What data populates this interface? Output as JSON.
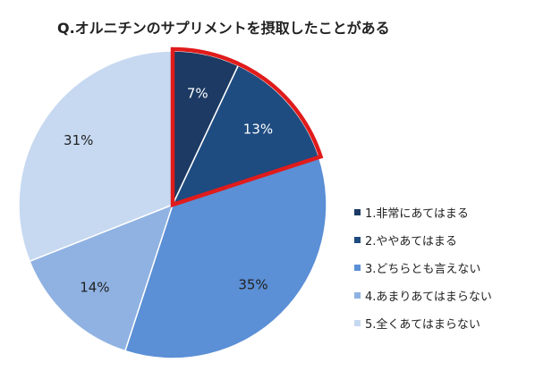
{
  "chart_data": {
    "type": "pie",
    "title": "Q.オルニチンのサプリメントを摂取したことがある",
    "slices": [
      {
        "label": "1.非常にあてはまる",
        "value": 7,
        "display": "7%",
        "color": "#1c3a63",
        "text_color": "#ffffff",
        "highlighted": true
      },
      {
        "label": "2.ややあてはまる",
        "value": 13,
        "display": "13%",
        "color": "#1e4b80",
        "text_color": "#ffffff",
        "highlighted": true
      },
      {
        "label": "3.どちらとも言えない",
        "value": 35,
        "display": "35%",
        "color": "#5b8fd6",
        "text_color": "#222222",
        "highlighted": false
      },
      {
        "label": "4.あまりあてはまらない",
        "value": 14,
        "display": "14%",
        "color": "#8fb2e2",
        "text_color": "#222222",
        "highlighted": false
      },
      {
        "label": "5.全くあてはまらない",
        "value": 31,
        "display": "31%",
        "color": "#c7d9f1",
        "text_color": "#222222",
        "highlighted": false
      }
    ],
    "start_angle": "12 o'clock",
    "direction": "clockwise",
    "legend_position": "right",
    "highlight_color": "#e01b1b"
  }
}
